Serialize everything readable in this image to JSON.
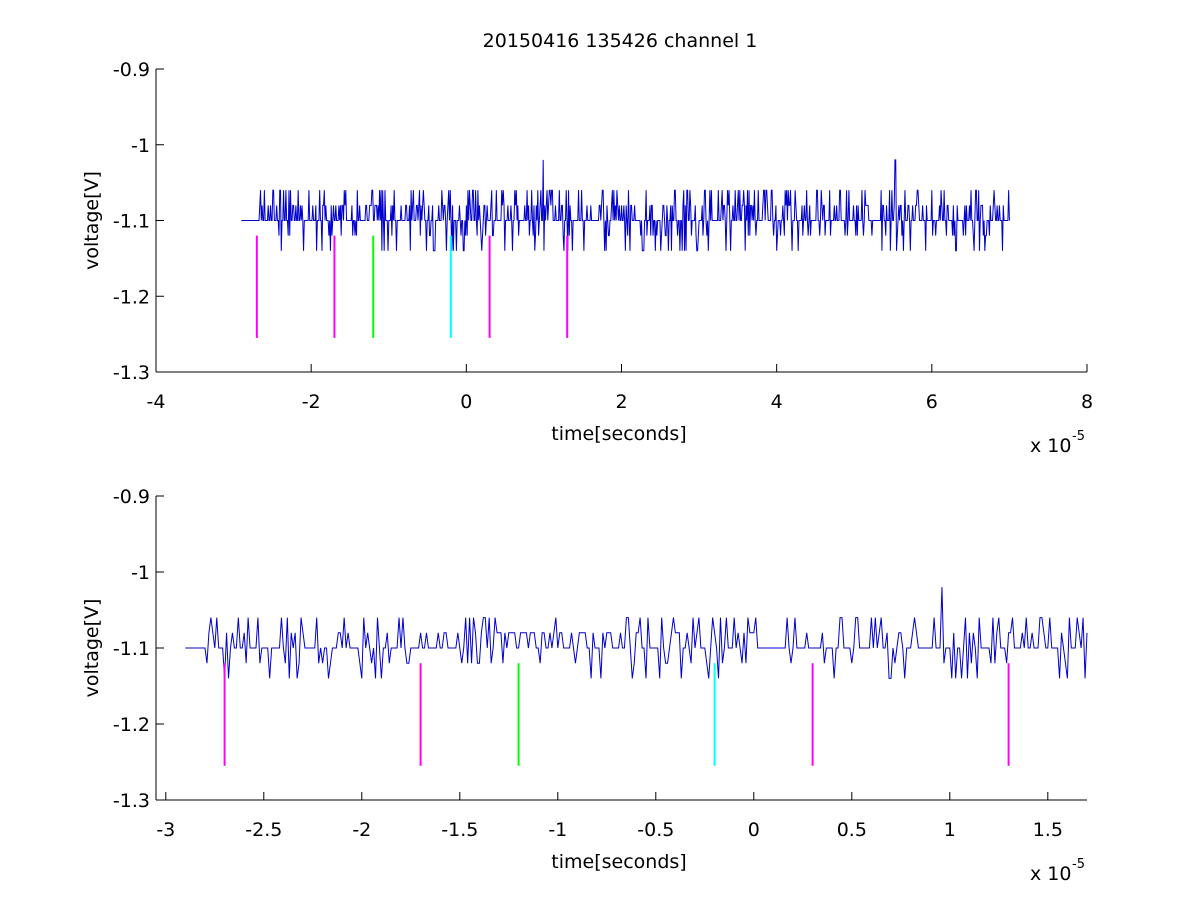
{
  "figure": {
    "title": "20150416 135426 channel 1",
    "background": "#ffffff"
  },
  "chart_data": [
    {
      "type": "line",
      "title": "20150416 135426 channel 1",
      "xlabel": "time[seconds]",
      "ylabel": "voltage[V]",
      "x_multiplier_text": "x 10",
      "x_multiplier_exp": "-5",
      "xlim": [
        -4,
        8
      ],
      "ylim": [
        -1.3,
        -0.9
      ],
      "xticks": [
        -4,
        -2,
        0,
        2,
        4,
        6,
        8
      ],
      "xtick_labels": [
        "-4",
        "-2",
        "0",
        "2",
        "4",
        "6",
        "8"
      ],
      "yticks": [
        -0.9,
        -1,
        -1.1,
        -1.2,
        -1.3
      ],
      "ytick_labels": [
        "-0.9",
        "-1",
        "-1.1",
        "-1.2",
        "-1.3"
      ],
      "grid": false,
      "legend": "none",
      "signal": {
        "color": "#0000cc",
        "x_start": -2.9,
        "x_end": 7.0,
        "baseline": -1.1,
        "levels": [
          -1.14,
          -1.12,
          -1.1,
          -1.08,
          -1.06
        ],
        "peaks": [
          {
            "x": 0.99,
            "y": -1.02
          },
          {
            "x": 5.53,
            "y": -1.02
          }
        ]
      },
      "markers": [
        {
          "x": -2.7,
          "y_top": -1.12,
          "y_bottom": -1.255,
          "color": "#ff00ff"
        },
        {
          "x": -1.7,
          "y_top": -1.12,
          "y_bottom": -1.255,
          "color": "#ff00ff"
        },
        {
          "x": -1.2,
          "y_top": -1.12,
          "y_bottom": -1.255,
          "color": "#00ff00"
        },
        {
          "x": -0.2,
          "y_top": -1.12,
          "y_bottom": -1.255,
          "color": "#00ffff"
        },
        {
          "x": 0.3,
          "y_top": -1.12,
          "y_bottom": -1.255,
          "color": "#ff00ff"
        },
        {
          "x": 1.3,
          "y_top": -1.12,
          "y_bottom": -1.255,
          "color": "#ff00ff"
        }
      ]
    },
    {
      "type": "line",
      "title": "",
      "xlabel": "time[seconds]",
      "ylabel": "voltage[V]",
      "x_multiplier_text": "x 10",
      "x_multiplier_exp": "-5",
      "xlim": [
        -3.05,
        1.7
      ],
      "ylim": [
        -1.3,
        -0.9
      ],
      "xticks": [
        -3,
        -2.5,
        -2,
        -1.5,
        -1,
        -0.5,
        0,
        0.5,
        1,
        1.5
      ],
      "xtick_labels": [
        "-3",
        "-2.5",
        "-2",
        "-1.5",
        "-1",
        "-0.5",
        "0",
        "0.5",
        "1",
        "1.5"
      ],
      "yticks": [
        -0.9,
        -1,
        -1.1,
        -1.2,
        -1.3
      ],
      "ytick_labels": [
        "-0.9",
        "-1",
        "-1.1",
        "-1.2",
        "-1.3"
      ],
      "grid": false,
      "legend": "none",
      "signal": {
        "color": "#0000cc",
        "x_start": -2.9,
        "x_end": 1.7,
        "baseline": -1.1,
        "levels": [
          -1.14,
          -1.12,
          -1.1,
          -1.08,
          -1.06
        ],
        "peaks": [
          {
            "x": 0.96,
            "y": -1.02
          }
        ]
      },
      "markers": [
        {
          "x": -2.7,
          "y_top": -1.12,
          "y_bottom": -1.255,
          "color": "#ff00ff"
        },
        {
          "x": -1.7,
          "y_top": -1.12,
          "y_bottom": -1.255,
          "color": "#ff00ff"
        },
        {
          "x": -1.2,
          "y_top": -1.12,
          "y_bottom": -1.255,
          "color": "#00ff00"
        },
        {
          "x": -0.2,
          "y_top": -1.12,
          "y_bottom": -1.255,
          "color": "#00ffff"
        },
        {
          "x": 0.3,
          "y_top": -1.12,
          "y_bottom": -1.255,
          "color": "#ff00ff"
        },
        {
          "x": 1.3,
          "y_top": -1.12,
          "y_bottom": -1.255,
          "color": "#ff00ff"
        }
      ]
    }
  ]
}
